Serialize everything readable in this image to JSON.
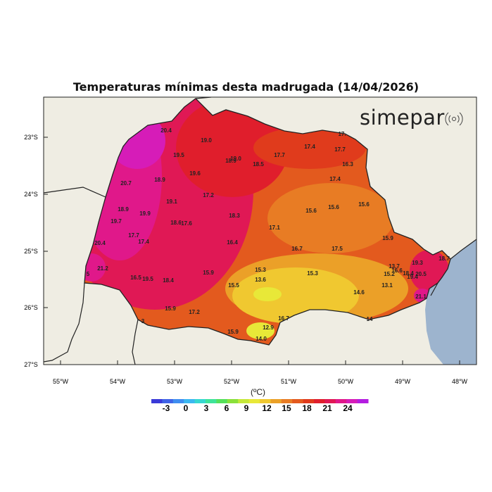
{
  "title": "Temperaturas mínimas desta madrugada (14/04/2026)",
  "brand": {
    "name": "simepar",
    "logo_icon": "radio-waves-icon"
  },
  "unit_label": "(ºC)",
  "axes": {
    "lat_ticks": [
      "23°S",
      "24°S",
      "25°S",
      "26°S",
      "27°S"
    ],
    "lon_ticks": [
      "55°W",
      "54°W",
      "53°W",
      "52°W",
      "51°W",
      "50°W",
      "49°W",
      "48°W"
    ]
  },
  "colorbar": {
    "labels": [
      "-3",
      "0",
      "3",
      "6",
      "9",
      "12",
      "15",
      "18",
      "21",
      "24"
    ],
    "colors": [
      "#3a3ad8",
      "#3f63e6",
      "#3f8ef0",
      "#3cb8f0",
      "#36d8d0",
      "#3fe39a",
      "#55e05a",
      "#8ae03a",
      "#c5e83a",
      "#e8e838",
      "#f0c830",
      "#eba028",
      "#e87c24",
      "#e35a1e",
      "#e03b1c",
      "#e01e2c",
      "#e01855",
      "#e0188a",
      "#d61cb8",
      "#b31ce0"
    ]
  },
  "colors": {
    "sea": "#9db4ce",
    "land": "#efede3",
    "border": "#222222"
  },
  "readings": [
    "20.4",
    "19.0",
    "19.5",
    "18.9",
    "19.0",
    "18.5",
    "17.7",
    "17.4",
    "17.7",
    "17.",
    "16.3",
    "20.7",
    "18.9",
    "19.6",
    "17.4",
    "15.6",
    "15.6",
    "15.6",
    "19.1",
    "17.2",
    "18.9",
    "19.9",
    "18.3",
    "19.7",
    "18.6",
    "17.6",
    "17.1",
    "17.7",
    "15.9",
    "17.4",
    "20.4",
    "16.4",
    "16.7",
    "17.5",
    "21.2",
    "15.3",
    "15.3",
    "16.5",
    "19.5",
    "15.9",
    "18.4",
    "13.6",
    "13.7",
    "19.3",
    "15.2",
    "16.6",
    "18.4",
    "20.5",
    "19.4",
    "15.5",
    "13.1",
    "14.6",
    "21.1",
    "18.7",
    "15.9",
    "17.2",
    "16.7",
    "15.9",
    "12.9",
    "14.0",
    "14",
    "5",
    "3"
  ]
}
